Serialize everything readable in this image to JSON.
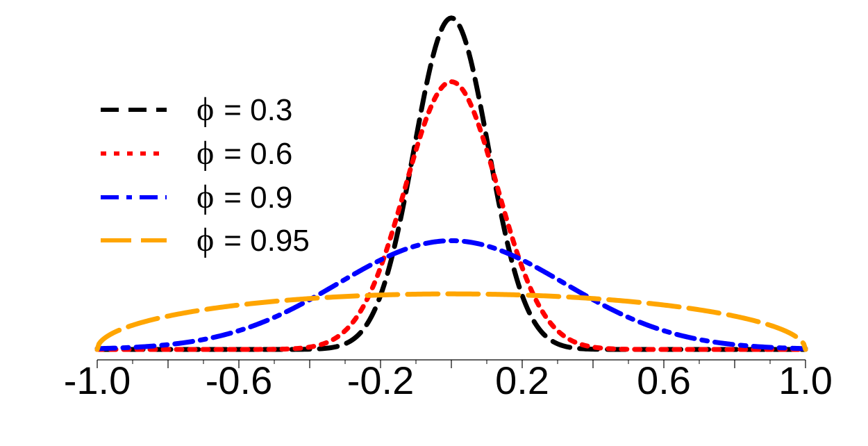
{
  "chart_data": {
    "type": "line",
    "title": "",
    "xlabel": "",
    "ylabel": "",
    "xlim": [
      -1.0,
      1.0
    ],
    "ylim": [
      0,
      3.05
    ],
    "grid": false,
    "legend_position": "top-left",
    "x_ticks_major": [
      -1.0,
      -0.6,
      -0.2,
      0.2,
      0.6,
      1.0
    ],
    "x_tick_labels": [
      "-1.0",
      "-0.6",
      "-0.2",
      "0.2",
      "0.6",
      "1.0"
    ],
    "x_ticks_minor_step": 0.2,
    "series": [
      {
        "name": "ϕ = 0.3",
        "symbol": "ϕ",
        "label_value": "= 0.3",
        "color": "#000000",
        "dash": "dashed",
        "kind": "gaussian",
        "mean": 0.0,
        "sd": 0.105
      },
      {
        "name": "ϕ = 0.6",
        "symbol": "ϕ",
        "label_value": "= 0.6",
        "color": "#ff0000",
        "dash": "dotted",
        "kind": "gaussian",
        "mean": 0.0,
        "sd": 0.13
      },
      {
        "name": "ϕ = 0.9",
        "symbol": "ϕ",
        "label_value": "= 0.9",
        "color": "#0000ff",
        "dash": "dashdot",
        "kind": "gaussian",
        "mean": 0.0,
        "sd": 0.32
      },
      {
        "name": "ϕ = 0.95",
        "symbol": "ϕ",
        "label_value": "= 0.95",
        "color": "#ffa500",
        "dash": "longdash",
        "kind": "semicircle",
        "mean": 0.0,
        "radius": 1.0
      }
    ]
  }
}
